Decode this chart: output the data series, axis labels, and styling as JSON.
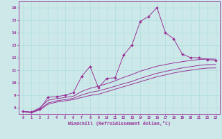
{
  "xlabel": "Windchill (Refroidissement éolien,°C)",
  "bg_color": "#cce8e8",
  "line_color": "#993399",
  "xlim": [
    -0.5,
    23.5
  ],
  "ylim": [
    7.5,
    16.5
  ],
  "xticks": [
    0,
    1,
    2,
    3,
    4,
    5,
    6,
    7,
    8,
    9,
    10,
    11,
    12,
    13,
    14,
    15,
    16,
    17,
    18,
    19,
    20,
    21,
    22,
    23
  ],
  "yticks": [
    8,
    9,
    10,
    11,
    12,
    13,
    14,
    15,
    16
  ],
  "series1_x": [
    0,
    1,
    2,
    3,
    4,
    5,
    6,
    7,
    8,
    9,
    10,
    11,
    12,
    13,
    14,
    15,
    16,
    17,
    18,
    19,
    20,
    21,
    22,
    23
  ],
  "series1_y": [
    7.7,
    7.65,
    7.9,
    8.85,
    8.88,
    9.0,
    9.2,
    10.5,
    11.3,
    9.6,
    10.35,
    10.4,
    12.2,
    13.0,
    14.9,
    15.3,
    16.0,
    14.0,
    13.5,
    12.3,
    12.0,
    12.0,
    11.85,
    11.8
  ],
  "series2_x": [
    0,
    1,
    2,
    3,
    4,
    5,
    6,
    7,
    8,
    9,
    10,
    11,
    12,
    13,
    14,
    15,
    16,
    17,
    18,
    19,
    20,
    21,
    22,
    23
  ],
  "series2_y": [
    7.7,
    7.65,
    8.0,
    8.6,
    8.72,
    8.82,
    8.92,
    9.3,
    9.55,
    9.72,
    9.92,
    10.15,
    10.42,
    10.65,
    10.92,
    11.12,
    11.32,
    11.45,
    11.58,
    11.68,
    11.78,
    11.85,
    11.9,
    11.88
  ],
  "series3_x": [
    0,
    1,
    2,
    3,
    4,
    5,
    6,
    7,
    8,
    9,
    10,
    11,
    12,
    13,
    14,
    15,
    16,
    17,
    18,
    19,
    20,
    21,
    22,
    23
  ],
  "series3_y": [
    7.7,
    7.62,
    7.88,
    8.38,
    8.55,
    8.65,
    8.75,
    9.02,
    9.22,
    9.35,
    9.52,
    9.72,
    9.92,
    10.1,
    10.35,
    10.55,
    10.75,
    10.9,
    11.05,
    11.18,
    11.28,
    11.38,
    11.45,
    11.45
  ],
  "series4_x": [
    0,
    1,
    2,
    3,
    4,
    5,
    6,
    7,
    8,
    9,
    10,
    11,
    12,
    13,
    14,
    15,
    16,
    17,
    18,
    19,
    20,
    21,
    22,
    23
  ],
  "series4_y": [
    7.7,
    7.6,
    7.82,
    8.28,
    8.45,
    8.55,
    8.65,
    8.82,
    8.98,
    9.08,
    9.28,
    9.48,
    9.68,
    9.88,
    10.08,
    10.28,
    10.48,
    10.62,
    10.78,
    10.9,
    11.0,
    11.1,
    11.17,
    11.18
  ]
}
